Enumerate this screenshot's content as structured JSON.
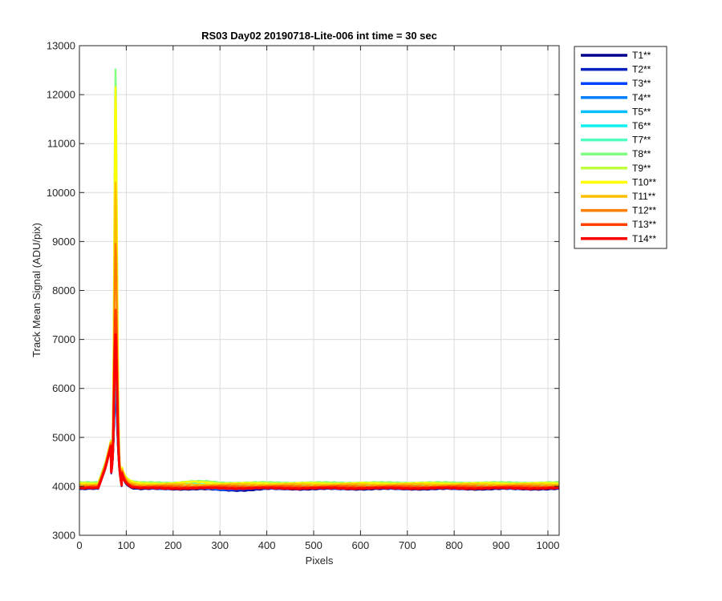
{
  "chart_data": {
    "type": "line",
    "title": "RS03 Day02 20190718-Lite-006 int time = 30 sec",
    "xlabel": "Pixels",
    "ylabel": "Track Mean Signal (ADU/pix)",
    "xlim": [
      0,
      1024
    ],
    "ylim": [
      3000,
      13000
    ],
    "xticks": [
      0,
      100,
      200,
      300,
      400,
      500,
      600,
      700,
      800,
      900,
      1000
    ],
    "yticks": [
      3000,
      4000,
      5000,
      6000,
      7000,
      8000,
      9000,
      10000,
      11000,
      12000,
      13000
    ],
    "grid": true,
    "legend_position": "outside-top-right",
    "series": [
      {
        "name": "T1**",
        "color": "#00008f",
        "peak": 5950,
        "baseline": 3940
      },
      {
        "name": "T2**",
        "color": "#0020c0",
        "peak": 6000,
        "baseline": 3950
      },
      {
        "name": "T3**",
        "color": "#0040ff",
        "peak": 6100,
        "baseline": 3960
      },
      {
        "name": "T4**",
        "color": "#0080ff",
        "peak": 6200,
        "baseline": 3970
      },
      {
        "name": "T5**",
        "color": "#00bfff",
        "peak": 6300,
        "baseline": 3990
      },
      {
        "name": "T6**",
        "color": "#10f0f0",
        "peak": 6400,
        "baseline": 4010
      },
      {
        "name": "T7**",
        "color": "#50ffc0",
        "peak": 7000,
        "baseline": 4040
      },
      {
        "name": "T8**",
        "color": "#80ff80",
        "peak": 12530,
        "baseline": 4080
      },
      {
        "name": "T9**",
        "color": "#c0ff40",
        "peak": 11500,
        "baseline": 4070
      },
      {
        "name": "T10**",
        "color": "#ffff00",
        "peak": 12150,
        "baseline": 4060
      },
      {
        "name": "T11**",
        "color": "#ffbf00",
        "peak": 10200,
        "baseline": 4040
      },
      {
        "name": "T12**",
        "color": "#ff8000",
        "peak": 8950,
        "baseline": 4010
      },
      {
        "name": "T13**",
        "color": "#ff4000",
        "peak": 7600,
        "baseline": 3980
      },
      {
        "name": "T14**",
        "color": "#ff0000",
        "peak": 7120,
        "baseline": 3960
      }
    ],
    "peak_x": 77
  }
}
